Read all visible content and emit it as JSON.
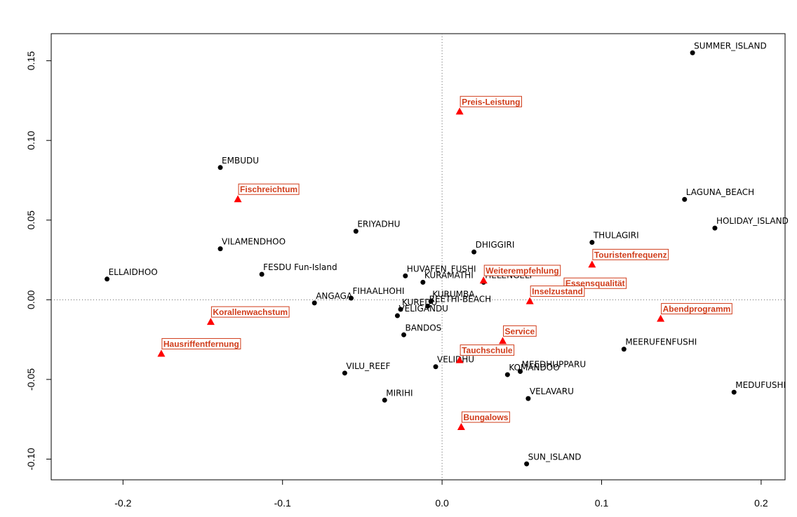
{
  "chart_data": {
    "type": "scatter",
    "title": "",
    "xlabel": "",
    "ylabel": "",
    "xlim": [
      -0.245,
      0.215
    ],
    "ylim": [
      -0.113,
      0.167
    ],
    "xticks": [
      -0.2,
      -0.1,
      0.0,
      0.1,
      0.2
    ],
    "xtick_labels": [
      "-0.2",
      "-0.1",
      "0.0",
      "0.1",
      "0.2"
    ],
    "yticks": [
      -0.1,
      -0.05,
      0.0,
      0.05,
      0.1,
      0.15
    ],
    "ytick_labels": [
      "-0.10",
      "-0.05",
      "0.00",
      "0.05",
      "0.10",
      "0.15"
    ],
    "reference_lines": {
      "x": 0.0,
      "y": 0.0,
      "style": "dotted"
    },
    "grid": false,
    "colors": {
      "points": "#000000",
      "attributes": "#ff0000",
      "attribute_text": "#d03c1a",
      "attribute_box": "#d03c1a"
    },
    "series": [
      {
        "marker": "circle",
        "points": [
          {
            "label": "SUMMER_ISLAND",
            "x": 0.157,
            "y": 0.155
          },
          {
            "label": "EMBUDU",
            "x": -0.139,
            "y": 0.083
          },
          {
            "label": "LAGUNA_BEACH",
            "x": 0.152,
            "y": 0.063
          },
          {
            "label": "HOLIDAY_ISLAND",
            "x": 0.171,
            "y": 0.045
          },
          {
            "label": "ERIYADHU",
            "x": -0.054,
            "y": 0.043
          },
          {
            "label": "THULAGIRI",
            "x": 0.094,
            "y": 0.036
          },
          {
            "label": "VILAMENDHOO",
            "x": -0.139,
            "y": 0.032
          },
          {
            "label": "DHIGGIRI",
            "x": 0.02,
            "y": 0.03
          },
          {
            "label": "FESDU Fun-Island",
            "x": -0.113,
            "y": 0.016
          },
          {
            "label": "ELLAIDHOO",
            "x": -0.21,
            "y": 0.013
          },
          {
            "label": "HUVAFEN_FUSHI",
            "x": -0.023,
            "y": 0.015
          },
          {
            "label": "KURAMATHI",
            "x": -0.012,
            "y": 0.011
          },
          {
            "label": "HELENGELI",
            "x": 0.026,
            "y": 0.011
          },
          {
            "label": "FIHAALHOHI",
            "x": -0.057,
            "y": 0.001
          },
          {
            "label": "KURUMBA",
            "x": -0.007,
            "y": -0.001
          },
          {
            "label": "REETHI-BEACH",
            "x": -0.009,
            "y": -0.004
          },
          {
            "label": "ANGAGA",
            "x": -0.08,
            "y": -0.002
          },
          {
            "label": "KUREDU",
            "x": -0.026,
            "y": -0.006
          },
          {
            "label": "VELIGANDU",
            "x": -0.028,
            "y": -0.01
          },
          {
            "label": "BANDOS",
            "x": -0.024,
            "y": -0.022
          },
          {
            "label": "MEERUFENFUSHI",
            "x": 0.114,
            "y": -0.031
          },
          {
            "label": "VILU_REEF",
            "x": -0.061,
            "y": -0.046
          },
          {
            "label": "VELIDHU",
            "x": -0.004,
            "y": -0.042
          },
          {
            "label": "MEEDHUPPARU",
            "x": 0.049,
            "y": -0.045
          },
          {
            "label": "KOMANDOO",
            "x": 0.041,
            "y": -0.047
          },
          {
            "label": "MIRIHI",
            "x": -0.036,
            "y": -0.063
          },
          {
            "label": "VELAVARU",
            "x": 0.054,
            "y": -0.062
          },
          {
            "label": "MEDUFUSHI",
            "x": 0.183,
            "y": -0.058
          },
          {
            "label": "SUN_ISLAND",
            "x": 0.053,
            "y": -0.103
          }
        ]
      },
      {
        "marker": "triangle",
        "points": [
          {
            "label": "Preis-Leistung",
            "x": 0.011,
            "y": 0.118
          },
          {
            "label": "Fischreichtum",
            "x": -0.128,
            "y": 0.063
          },
          {
            "label": "Touristenfrequenz",
            "x": 0.094,
            "y": 0.022
          },
          {
            "label": "Weiterempfehlung",
            "x": 0.026,
            "y": 0.012
          },
          {
            "label": "Essensqualität",
            "x": 0.076,
            "y": 0.004
          },
          {
            "label": "Inselzustand",
            "x": 0.055,
            "y": -0.001
          },
          {
            "label": "Korallenwachstum",
            "x": -0.145,
            "y": -0.014
          },
          {
            "label": "Abendprogramm",
            "x": 0.137,
            "y": -0.012
          },
          {
            "label": "Service",
            "x": 0.038,
            "y": -0.026
          },
          {
            "label": "Hausriffentfernung",
            "x": -0.176,
            "y": -0.034
          },
          {
            "label": "Tauchschule",
            "x": 0.011,
            "y": -0.038
          },
          {
            "label": "Bungalows",
            "x": 0.012,
            "y": -0.08
          }
        ]
      }
    ]
  }
}
